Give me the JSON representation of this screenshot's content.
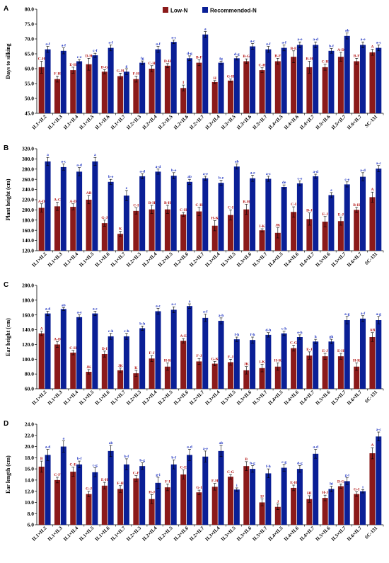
{
  "legend": {
    "low": "Low-N",
    "rec": "Recommended-N"
  },
  "colors": {
    "low": "#8b1a1a",
    "rec": "#0a1f96",
    "low_label": "#b01010",
    "rec_label": "#1a2fbf"
  },
  "chart_data": [
    {
      "panel": "A",
      "type": "bar",
      "ylabel": "Days to silking",
      "ylim": [
        45,
        80
      ],
      "yticks": [
        45,
        50,
        55,
        60,
        65,
        70,
        75,
        80
      ],
      "tick_decimals": 1,
      "categories": [
        "IL1×IL2",
        "IL1×IL3",
        "IL1×IL4",
        "IL1×IL5",
        "IL1×IL6",
        "IL1×IL7",
        "IL2×IL3",
        "IL2×IL4",
        "IL2×IL5",
        "IL2×IL6",
        "IL2×IL7",
        "IL3×IL4",
        "IL3×IL5",
        "IL3×IL6",
        "IL3×IL7",
        "IL4×IL5",
        "IL4×IL6",
        "IL4×IL7",
        "IL5×IL6",
        "IL5×IL7",
        "IL6×IL7",
        "SC-131"
      ],
      "series": [
        {
          "name": "Low-N",
          "values": [
            60.5,
            56.5,
            59.5,
            61.5,
            59,
            57.5,
            56.5,
            60,
            61,
            53.5,
            62,
            55.5,
            56,
            62.5,
            59.5,
            62.5,
            64,
            60.5,
            60.5,
            64,
            62.5,
            65.5
          ],
          "errors": [
            2,
            1,
            1,
            2,
            0.7,
            1,
            1,
            1,
            0.7,
            1,
            1,
            0.5,
            0.5,
            0.8,
            0.8,
            1,
            2,
            2,
            1,
            1.5,
            1,
            1
          ],
          "labels": [
            "C-H",
            "F-H",
            "E-H",
            "D-H",
            "D-G",
            "G-H",
            "F-H",
            "C-H",
            "D-H",
            "I",
            "B-F",
            "H",
            "G-H",
            "B-G",
            "C-H",
            "B-F",
            "B-E",
            "B-H",
            "C-H",
            "A-D",
            "B-F",
            "A"
          ]
        },
        {
          "name": "Recommended-N",
          "values": [
            66.5,
            66,
            62.5,
            64.5,
            67,
            59,
            62,
            66.5,
            69,
            63.5,
            71.5,
            62,
            63.5,
            67.5,
            66.5,
            67,
            68,
            68,
            66,
            71,
            68,
            67
          ],
          "errors": [
            1,
            1,
            0.6,
            0.7,
            1,
            1,
            0.6,
            1,
            0.6,
            0.8,
            1,
            0.5,
            0.6,
            1,
            1,
            1,
            1,
            1,
            0.8,
            1,
            1,
            1
          ],
          "labels": [
            "a-f",
            "a-f",
            "c-e",
            "c-f",
            "a-f",
            "g",
            "fg",
            "a-f",
            "a-c",
            "d-g",
            "a",
            "fg",
            "d-g",
            "a-c",
            "a-f",
            "a-f",
            "a-e",
            "a-d",
            "b-f",
            "ab",
            "a-e",
            "a-c"
          ]
        }
      ]
    },
    {
      "panel": "B",
      "type": "bar",
      "ylabel": "Plant height (cm)",
      "ylim": [
        120,
        320
      ],
      "yticks": [
        120,
        140,
        160,
        180,
        200,
        220,
        240,
        260,
        280,
        300,
        320
      ],
      "tick_decimals": 1,
      "categories": [
        "IL1×IL2",
        "IL1×IL3",
        "IL1×IL4",
        "IL1×IL5",
        "IL1×IL6",
        "IL1×IL7",
        "IL2×IL3",
        "IL2×IL4",
        "IL2×IL5",
        "IL2×IL6",
        "IL2×IL7",
        "IL3×IL4",
        "IL3×IL5",
        "IL3×IL6",
        "IL3×IL7",
        "IL4×IL5",
        "IL4×IL6",
        "IL4×IL7",
        "IL5×IL6",
        "IL5×IL7",
        "IL6×IL7",
        "SC-131"
      ],
      "series": [
        {
          "name": "Low-N",
          "values": [
            204,
            207,
            206,
            220,
            174,
            153,
            198,
            201,
            201,
            191,
            197,
            169,
            190,
            201,
            160,
            155,
            196,
            182,
            177,
            178,
            200,
            225
          ],
          "errors": [
            8,
            8,
            6,
            8,
            6,
            5,
            6,
            8,
            8,
            4,
            8,
            10,
            10,
            10,
            3,
            10,
            10,
            12,
            10,
            8,
            5,
            10
          ],
          "labels": [
            "A-D",
            "A-C",
            "A-D",
            "AB",
            "G-J",
            "K",
            "C-I",
            "B-H",
            "B-H",
            "C-H",
            "C-H",
            "H-K",
            "C-I",
            "B-H",
            "I-K",
            "JK",
            "C-I",
            "D-J",
            "E-J",
            "E-J",
            "B-H",
            "A"
          ]
        },
        {
          "name": "Recommended-N",
          "values": [
            295,
            284,
            275,
            295,
            255,
            228,
            266,
            275,
            267,
            255,
            262,
            253,
            285,
            262,
            261,
            245,
            252,
            266,
            229,
            250,
            265,
            281
          ],
          "errors": [
            8,
            6,
            8,
            8,
            5,
            10,
            5,
            5,
            6,
            5,
            4,
            5,
            5,
            6,
            5,
            4,
            5,
            4,
            5,
            5,
            8,
            6
          ],
          "labels": [
            "a",
            "a-c",
            "a-d",
            "a",
            "b-e",
            "e",
            "a-d",
            "a-d",
            "b-e",
            "ab",
            "a-e",
            "b-e",
            "ab",
            "a-e",
            "a-c",
            "de",
            "c-e",
            "a-d",
            "e",
            "c-e",
            "a-d",
            "a-c"
          ]
        }
      ]
    },
    {
      "panel": "C",
      "type": "bar",
      "ylabel": "Ear height (cm)",
      "ylim": [
        60,
        200
      ],
      "yticks": [
        60,
        80,
        100,
        120,
        140,
        160,
        180,
        200
      ],
      "tick_decimals": 1,
      "categories": [
        "IL1×IL2",
        "IL1×IL3",
        "IL1×IL4",
        "IL1×IL5",
        "IL1×IL6",
        "IL1×IL7",
        "IL2×IL3",
        "IL2×IL4",
        "IL2×IL5",
        "IL2×IL6",
        "IL2×IL7",
        "IL3×IL4",
        "IL3×IL5",
        "IL3×IL6",
        "IL3×IL7",
        "IL4×IL5",
        "IL4×IL6",
        "IL4×IL7",
        "IL5×IL6",
        "IL5×IL7",
        "IL6×IL7",
        "SC-131"
      ],
      "series": [
        {
          "name": "Low-N",
          "values": [
            135,
            120,
            109,
            83,
            107,
            85,
            81,
            101,
            90,
            125,
            97,
            94,
            96,
            85,
            88,
            90,
            115,
            105,
            104,
            104,
            90,
            130
          ],
          "errors": [
            3,
            4,
            3,
            3,
            4,
            3,
            4,
            4,
            5,
            3,
            4,
            3,
            4,
            5,
            5,
            5,
            4,
            5,
            4,
            4,
            5,
            6
          ],
          "labels": [
            "A",
            "A-D",
            "C-H",
            "JK",
            "D-I",
            "JK",
            "K",
            "F-J",
            "H-K",
            "A-E",
            "F-J",
            "G-K",
            "F-J",
            "JK",
            "I-K",
            "H-K",
            "C-G",
            "E-J",
            "E-J",
            "E-H",
            "H-K",
            "AB"
          ]
        },
        {
          "name": "Recommended-N",
          "values": [
            162,
            168,
            157,
            162,
            131,
            131,
            142,
            165,
            167,
            172,
            156,
            152,
            127,
            126,
            133,
            135,
            130,
            124,
            124,
            153,
            155,
            153
          ],
          "errors": [
            3,
            2,
            3,
            3,
            4,
            4,
            3,
            4,
            4,
            3,
            5,
            4,
            3,
            4,
            3,
            3,
            3,
            3,
            3,
            5,
            4,
            5
          ],
          "labels": [
            "a-d",
            "ab",
            "a-e",
            "a-c",
            "c-h",
            "c-h",
            "b-h",
            "a-c",
            "a-c",
            "a",
            "a-f",
            "a-h",
            "f-h",
            "f-h",
            "d-h",
            "c-h",
            "e-h",
            "h",
            "gh",
            "a-g",
            "a-f",
            "a-g"
          ]
        }
      ]
    },
    {
      "panel": "D",
      "type": "bar",
      "ylabel": "Ear length (cm)",
      "ylim": [
        6,
        24
      ],
      "yticks": [
        6,
        8,
        10,
        12,
        14,
        16,
        18,
        20,
        22,
        24
      ],
      "tick_decimals": 1,
      "categories": [
        "IL1×IL2",
        "IL1×IL3",
        "IL1×IL4",
        "IL1×IL5",
        "IL1×IL6",
        "IL1×IL7",
        "IL2×IL3",
        "IL2×IL4",
        "IL2×IL5",
        "IL2×IL6",
        "IL2×IL7",
        "IL3×IL4",
        "IL3×IL5",
        "IL3×IL6",
        "IL3×IL7",
        "IL4×IL5",
        "IL4×IL6",
        "IL4×IL7",
        "IL5×IL6",
        "IL5×IL7",
        "IL6×IL7",
        "SC-131"
      ],
      "series": [
        {
          "name": "Low-N",
          "values": [
            16.4,
            14.0,
            15.5,
            11.5,
            13.0,
            12.4,
            14.3,
            10.6,
            12.7,
            15.0,
            11.8,
            12.8,
            14.6,
            16.5,
            10.0,
            9.2,
            12.6,
            10.6,
            10.8,
            12.9,
            11.5,
            18.8
          ],
          "errors": [
            1,
            0.5,
            0.8,
            0.5,
            0.6,
            0.6,
            0.5,
            0.8,
            0.6,
            0.8,
            0.4,
            0.6,
            0.4,
            0.8,
            0.6,
            0.5,
            0.5,
            0.6,
            0.5,
            0.4,
            0.4,
            1
          ],
          "labels": [
            "B",
            "C-F",
            "C-E",
            "G-J",
            "E-H",
            "F-H",
            "C-F",
            "H-J",
            "F-I",
            "C-E",
            "G-I",
            "F-H",
            "C-G",
            "B",
            "IJ",
            "J",
            "E-H",
            "HI",
            "H-J",
            "D-G",
            "G-I",
            "A"
          ]
        },
        {
          "name": "Recommended-N",
          "values": [
            18.5,
            20.0,
            16.8,
            15.4,
            19.2,
            16.8,
            16.5,
            13.5,
            16.8,
            18.5,
            18.2,
            19.2,
            12.3,
            16.0,
            15.2,
            16.2,
            16.0,
            18.7,
            12.4,
            13.8,
            12.0,
            21.8
          ],
          "errors": [
            1,
            1,
            0.6,
            0.8,
            1,
            1,
            0.6,
            1,
            0.8,
            1,
            1,
            1,
            0.3,
            0.6,
            0.8,
            0.6,
            0.6,
            0.8,
            0.5,
            0.6,
            0.3,
            0.8
          ],
          "labels": [
            "a-d",
            "a",
            "b-f",
            "c-g",
            "ab",
            "b-f",
            "b-g",
            "g-i",
            "b-f",
            "a-d",
            "a-e",
            "ab",
            "i",
            "b-g",
            "f-h",
            "c-g",
            "d-g",
            "a-d",
            "hi",
            "g-i",
            "i",
            "a-c"
          ]
        }
      ]
    }
  ]
}
